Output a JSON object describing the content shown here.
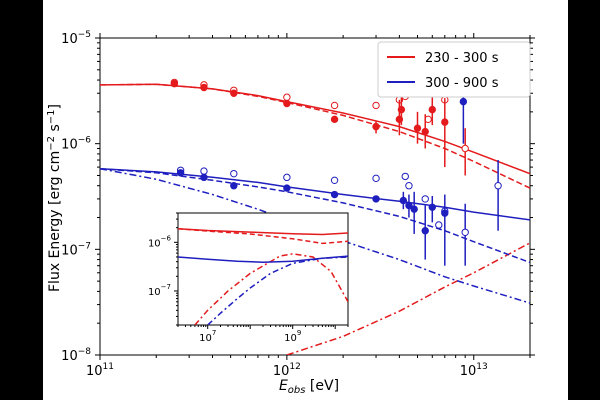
{
  "chart_data": {
    "type": "scatter",
    "title": "",
    "xlabel": "E_obs [eV]",
    "ylabel": "Flux Energy [erg cm^-2 s^-1]",
    "xscale": "log",
    "yscale": "log",
    "xlim": [
      100000000000.0,
      20000000000000.0
    ],
    "ylim": [
      1e-08,
      1e-05
    ],
    "x_tick_labels": [
      "10^11",
      "10^12",
      "10^13"
    ],
    "y_tick_labels": [
      "10^-8",
      "10^-7",
      "10^-6",
      "10^-5"
    ],
    "legend": {
      "position": "top-right",
      "entries": [
        {
          "label": "230 - 300 s",
          "color": "#e41a1c"
        },
        {
          "label": "300 - 900 s",
          "color": "#1f1fbf"
        }
      ]
    },
    "colors": {
      "red": "#e41a1c",
      "blue": "#1f1fbf"
    },
    "series": [
      {
        "name": "230 - 300 s",
        "color": "#e41a1c",
        "filled_points": [
          {
            "x": 250000000000.0,
            "y": 3.7e-06
          },
          {
            "x": 360000000000.0,
            "y": 3.4e-06
          },
          {
            "x": 520000000000.0,
            "y": 3e-06
          },
          {
            "x": 1000000000000.0,
            "y": 2.4e-06
          },
          {
            "x": 1800000000000.0,
            "y": 1.7e-06
          },
          {
            "x": 3000000000000.0,
            "y": 1.45e-06,
            "yerr": [
              1.25e-06,
              1.65e-06
            ]
          },
          {
            "x": 4000000000000.0,
            "y": 1.7e-06,
            "yerr": [
              1.2e-06,
              2.6e-06
            ]
          },
          {
            "x": 4100000000000.0,
            "y": 2.1e-06,
            "yerr": [
              1.5e-06,
              2.8e-06
            ]
          },
          {
            "x": 5000000000000.0,
            "y": 1.4e-06,
            "yerr": [
              1e-06,
              2e-06
            ]
          },
          {
            "x": 5500000000000.0,
            "y": 1.3e-06,
            "yerr": [
              9e-07,
              1.9e-06
            ]
          },
          {
            "x": 6000000000000.0,
            "y": 2.1e-06,
            "yerr": [
              1.5e-06,
              2.8e-06
            ]
          },
          {
            "x": 7000000000000.0,
            "y": 1.6e-06,
            "yerr": [
              6e-07,
              2.7e-06
            ]
          }
        ],
        "open_points": [
          {
            "x": 250000000000.0,
            "y": 3.8e-06
          },
          {
            "x": 360000000000.0,
            "y": 3.6e-06
          },
          {
            "x": 520000000000.0,
            "y": 3.2e-06
          },
          {
            "x": 1000000000000.0,
            "y": 2.75e-06
          },
          {
            "x": 1800000000000.0,
            "y": 2.3e-06
          },
          {
            "x": 3000000000000.0,
            "y": 2.3e-06
          },
          {
            "x": 4000000000000.0,
            "y": 2.6e-06
          },
          {
            "x": 4300000000000.0,
            "y": 2.8e-06
          },
          {
            "x": 5700000000000.0,
            "y": 1.7e-06
          },
          {
            "x": 7000000000000.0,
            "y": 2.6e-06
          },
          {
            "x": 9000000000000.0,
            "y": 9e-07,
            "yerr": [
              5e-07,
              1.4e-06
            ]
          }
        ],
        "model_solid": [
          [
            100000000000.0,
            3.6e-06
          ],
          [
            200000000000.0,
            3.65e-06
          ],
          [
            400000000000.0,
            3.3e-06
          ],
          [
            700000000000.0,
            2.85e-06
          ],
          [
            1000000000000.0,
            2.5e-06
          ],
          [
            2000000000000.0,
            1.95e-06
          ],
          [
            4000000000000.0,
            1.45e-06
          ],
          [
            7000000000000.0,
            1.05e-06
          ],
          [
            10000000000000.0,
            8.3e-07
          ],
          [
            20000000000000.0,
            5.2e-07
          ]
        ],
        "model_dashed": [
          [
            100000000000.0,
            3.6e-06
          ],
          [
            200000000000.0,
            3.65e-06
          ],
          [
            400000000000.0,
            3.3e-06
          ],
          [
            700000000000.0,
            2.8e-06
          ],
          [
            1000000000000.0,
            2.45e-06
          ],
          [
            2000000000000.0,
            1.85e-06
          ],
          [
            4000000000000.0,
            1.3e-06
          ],
          [
            7000000000000.0,
            9e-07
          ],
          [
            10000000000000.0,
            6.8e-07
          ],
          [
            20000000000000.0,
            3.8e-07
          ]
        ],
        "model_dashdot": [
          [
            1000000000000.0,
            1e-08
          ],
          [
            2000000000000.0,
            1.5e-08
          ],
          [
            4000000000000.0,
            2.6e-08
          ],
          [
            7000000000000.0,
            4.4e-08
          ],
          [
            10000000000000.0,
            6e-08
          ],
          [
            20000000000000.0,
            1.15e-07
          ]
        ]
      },
      {
        "name": "300 - 900 s",
        "color": "#1f1fbf",
        "filled_points": [
          {
            "x": 270000000000.0,
            "y": 5.3e-07
          },
          {
            "x": 360000000000.0,
            "y": 4.8e-07
          },
          {
            "x": 520000000000.0,
            "y": 4e-07
          },
          {
            "x": 1000000000000.0,
            "y": 3.8e-07
          },
          {
            "x": 1800000000000.0,
            "y": 3.3e-07
          },
          {
            "x": 3000000000000.0,
            "y": 3e-07
          },
          {
            "x": 4200000000000.0,
            "y": 2.9e-07,
            "yerr": [
              2.4e-07,
              3.5e-07
            ]
          },
          {
            "x": 4500000000000.0,
            "y": 2.6e-07,
            "yerr": [
              2e-07,
              3.3e-07
            ]
          },
          {
            "x": 4800000000000.0,
            "y": 2.4e-07,
            "yerr": [
              1.4e-07,
              3.5e-07
            ]
          },
          {
            "x": 5500000000000.0,
            "y": 1.5e-07,
            "yerr": [
              8e-08,
              2.6e-07
            ]
          },
          {
            "x": 6000000000000.0,
            "y": 2.5e-07,
            "yerr": [
              1.8e-07,
              3.2e-07
            ]
          },
          {
            "x": 7000000000000.0,
            "y": 2.2e-07,
            "yerr": [
              7e-08,
              3.3e-07
            ]
          },
          {
            "x": 8800000000000.0,
            "y": 2.5e-06,
            "yerr": [
              1e-06,
              3.2e-06
            ]
          }
        ],
        "open_points": [
          {
            "x": 270000000000.0,
            "y": 5.6e-07
          },
          {
            "x": 360000000000.0,
            "y": 5.5e-07
          },
          {
            "x": 520000000000.0,
            "y": 5.2e-07
          },
          {
            "x": 1000000000000.0,
            "y": 4.8e-07
          },
          {
            "x": 1800000000000.0,
            "y": 4.5e-07
          },
          {
            "x": 3000000000000.0,
            "y": 4.7e-07
          },
          {
            "x": 4300000000000.0,
            "y": 4.9e-07
          },
          {
            "x": 4500000000000.0,
            "y": 4e-07
          },
          {
            "x": 5500000000000.0,
            "y": 3e-07
          },
          {
            "x": 6500000000000.0,
            "y": 1.7e-07
          },
          {
            "x": 7000000000000.0,
            "y": 2.3e-07
          },
          {
            "x": 9000000000000.0,
            "y": 1.45e-07,
            "yerr": [
              7e-08,
              2.7e-07
            ]
          },
          {
            "x": 13500000000000.0,
            "y": 4e-07,
            "yerr": [
              1.5e-07,
              7e-07
            ]
          }
        ],
        "model_solid": [
          [
            100000000000.0,
            5.8e-07
          ],
          [
            200000000000.0,
            5.4e-07
          ],
          [
            400000000000.0,
            4.8e-07
          ],
          [
            700000000000.0,
            4.3e-07
          ],
          [
            1000000000000.0,
            3.9e-07
          ],
          [
            2000000000000.0,
            3.3e-07
          ],
          [
            4000000000000.0,
            2.85e-07
          ],
          [
            7000000000000.0,
            2.5e-07
          ],
          [
            10000000000000.0,
            2.25e-07
          ],
          [
            20000000000000.0,
            1.9e-07
          ]
        ],
        "model_dashed": [
          [
            100000000000.0,
            5.8e-07
          ],
          [
            200000000000.0,
            5.3e-07
          ],
          [
            400000000000.0,
            4.5e-07
          ],
          [
            700000000000.0,
            3.9e-07
          ],
          [
            1000000000000.0,
            3.5e-07
          ],
          [
            2000000000000.0,
            2.75e-07
          ],
          [
            4000000000000.0,
            2.05e-07
          ],
          [
            7000000000000.0,
            1.5e-07
          ],
          [
            10000000000000.0,
            1.18e-07
          ],
          [
            20000000000000.0,
            7.5e-08
          ]
        ],
        "model_dashdot": [
          [
            100000000000.0,
            5.8e-07
          ],
          [
            200000000000.0,
            4.6e-07
          ],
          [
            400000000000.0,
            3.3e-07
          ],
          [
            700000000000.0,
            2.4e-07
          ],
          [
            1000000000000.0,
            1.9e-07
          ],
          [
            2000000000000.0,
            1.2e-07
          ],
          [
            4000000000000.0,
            8e-08
          ],
          [
            7000000000000.0,
            5.5e-08
          ],
          [
            10000000000000.0,
            4.5e-08
          ],
          [
            20000000000000.0,
            3.1e-08
          ]
        ]
      }
    ],
    "inset": {
      "xscale": "log",
      "yscale": "log",
      "xlim": [
        2000000.0,
        20000000000.0
      ],
      "ylim": [
        2e-08,
        4e-06
      ],
      "x_tick_labels": [
        "10^7",
        "10^9"
      ],
      "y_tick_labels": [
        "10^-7",
        "10^-6"
      ],
      "red_solid": [
        [
          2000000.0,
          1.9e-06
        ],
        [
          10000000.0,
          1.75e-06
        ],
        [
          100000000.0,
          1.62e-06
        ],
        [
          1000000000.0,
          1.5e-06
        ],
        [
          5000000000.0,
          1.45e-06
        ],
        [
          20000000000.0,
          1.55e-06
        ]
      ],
      "red_dashed": [
        [
          2000000.0,
          1.9e-06
        ],
        [
          10000000.0,
          1.7e-06
        ],
        [
          100000000.0,
          1.48e-06
        ],
        [
          1000000000.0,
          1.18e-06
        ],
        [
          5000000000.0,
          9.5e-07
        ],
        [
          20000000000.0,
          1.05e-06
        ]
      ],
      "red_dashdot": [
        [
          5000000.0,
          2e-08
        ],
        [
          10000000.0,
          4e-08
        ],
        [
          30000000.0,
          1e-07
        ],
        [
          100000000.0,
          2.3e-07
        ],
        [
          500000000.0,
          5.2e-07
        ],
        [
          1000000000.0,
          5.8e-07
        ],
        [
          3000000000.0,
          5e-07
        ],
        [
          8000000000.0,
          2.5e-07
        ],
        [
          20000000000.0,
          6e-08
        ]
      ],
      "blue_solid": [
        [
          2000000.0,
          5e-07
        ],
        [
          10000000.0,
          4.5e-07
        ],
        [
          50000000.0,
          4.1e-07
        ],
        [
          200000000.0,
          3.9e-07
        ],
        [
          1000000000.0,
          4.1e-07
        ],
        [
          5000000000.0,
          4.7e-07
        ],
        [
          20000000000.0,
          5.2e-07
        ]
      ],
      "blue_dashdot": [
        [
          10000000.0,
          2e-08
        ],
        [
          20000000.0,
          3.5e-08
        ],
        [
          50000000.0,
          7e-08
        ],
        [
          100000000.0,
          1.15e-07
        ],
        [
          300000000.0,
          2.3e-07
        ],
        [
          1000000000.0,
          3.7e-07
        ],
        [
          5000000000.0,
          4.7e-07
        ],
        [
          20000000000.0,
          5e-07
        ]
      ]
    }
  }
}
